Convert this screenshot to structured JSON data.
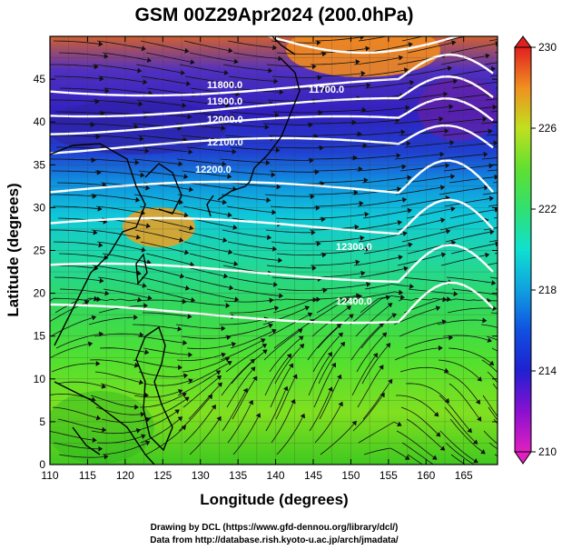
{
  "title": "GSM 00Z29Apr2024 (200.0hPa)",
  "x_axis": {
    "label": "Longitude (degrees)",
    "ticks": [
      "110",
      "115",
      "120",
      "125",
      "130",
      "135",
      "140",
      "145",
      "150",
      "155",
      "160",
      "165"
    ],
    "range": [
      110,
      169.5
    ]
  },
  "y_axis": {
    "label": "Latitude (degrees)",
    "ticks": [
      "0",
      "5",
      "10",
      "15",
      "20",
      "25",
      "30",
      "35",
      "40",
      "45"
    ],
    "range": [
      0,
      50
    ]
  },
  "colorbar": {
    "ticks": [
      "230",
      "226",
      "222",
      "218",
      "214",
      "210"
    ],
    "range": [
      210,
      230
    ],
    "colors": [
      "#e020c0",
      "#8a10d0",
      "#2020d0",
      "#1070e0",
      "#10c0e0",
      "#20e0a0",
      "#40e040",
      "#a0e020",
      "#f0d020",
      "#f08020",
      "#e02020"
    ]
  },
  "contour_labels": [
    "11800.0",
    "11900.0",
    "12000.0",
    "12100.0",
    "11700.0",
    "12200.0",
    "12300.0",
    "12400.0"
  ],
  "credits": {
    "line1": "Drawing by DCL (https://www.gfd-dennou.org/library/dcl/)",
    "line2": "Data from http://database.rish.kyoto-u.ac.jp/arch/jmadata/"
  }
}
